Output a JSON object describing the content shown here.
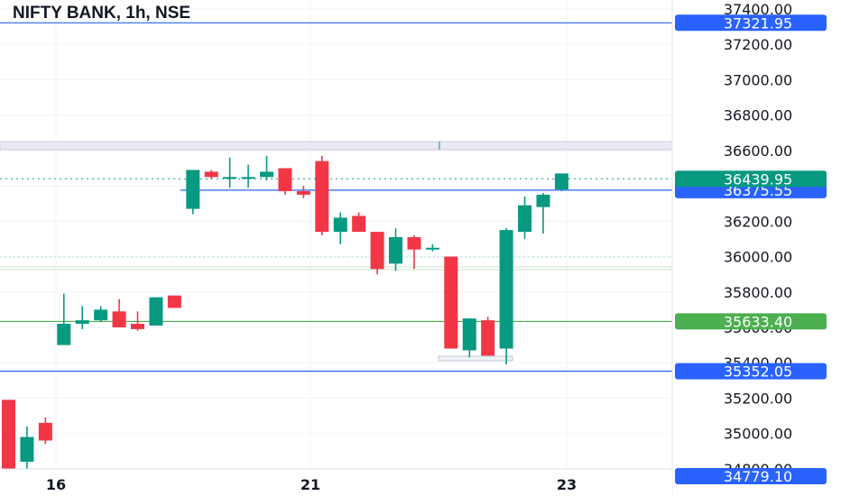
{
  "chart_data": {
    "type": "candlestick",
    "title": "NIFTY BANK, 1h, NSE",
    "x_tick_labels": [
      "16",
      "21",
      "23"
    ],
    "y_tick_labels": [
      "37400.00",
      "37200.00",
      "37000.00",
      "36800.00",
      "36600.00",
      "36400.00",
      "36200.00",
      "36000.00",
      "35800.00",
      "35600.00",
      "35400.00",
      "35200.00",
      "35000.00",
      "34800.00"
    ],
    "y_range": [
      34730,
      37460
    ],
    "grid": true,
    "colors": {
      "up": "#089981",
      "down": "#f23645",
      "blue_line": "#2962ff",
      "green_line": "#4caf50"
    },
    "candles": [
      {
        "o": 35190,
        "h": 35190,
        "l": 34760,
        "c": 34760
      },
      {
        "o": 34840,
        "h": 35040,
        "l": 34800,
        "c": 34980
      },
      {
        "o": 35060,
        "h": 35090,
        "l": 34940,
        "c": 34960
      },
      {
        "o": 35500,
        "h": 35790,
        "l": 35500,
        "c": 35620
      },
      {
        "o": 35620,
        "h": 35720,
        "l": 35590,
        "c": 35640
      },
      {
        "o": 35640,
        "h": 35720,
        "l": 35630,
        "c": 35700
      },
      {
        "o": 35690,
        "h": 35760,
        "l": 35600,
        "c": 35600
      },
      {
        "o": 35620,
        "h": 35690,
        "l": 35580,
        "c": 35590
      },
      {
        "o": 35610,
        "h": 35770,
        "l": 35610,
        "c": 35770
      },
      {
        "o": 35780,
        "h": 35780,
        "l": 35710,
        "c": 35710
      },
      {
        "o": 36270,
        "h": 36490,
        "l": 36240,
        "c": 36490
      },
      {
        "o": 36480,
        "h": 36490,
        "l": 36440,
        "c": 36450
      },
      {
        "o": 36440,
        "h": 36560,
        "l": 36390,
        "c": 36450
      },
      {
        "o": 36450,
        "h": 36520,
        "l": 36390,
        "c": 36450
      },
      {
        "o": 36450,
        "h": 36570,
        "l": 36430,
        "c": 36480
      },
      {
        "o": 36500,
        "h": 36500,
        "l": 36350,
        "c": 36370
      },
      {
        "o": 36370,
        "h": 36400,
        "l": 36330,
        "c": 36350
      },
      {
        "o": 36540,
        "h": 36570,
        "l": 36120,
        "c": 36140
      },
      {
        "o": 36140,
        "h": 36250,
        "l": 36070,
        "c": 36220
      },
      {
        "o": 36230,
        "h": 36250,
        "l": 36140,
        "c": 36140
      },
      {
        "o": 36140,
        "h": 36140,
        "l": 35900,
        "c": 35930
      },
      {
        "o": 35960,
        "h": 36160,
        "l": 35920,
        "c": 36110
      },
      {
        "o": 36110,
        "h": 36120,
        "l": 35930,
        "c": 36040
      },
      {
        "o": 36050,
        "h": 36070,
        "l": 36030,
        "c": 36050
      },
      {
        "o": 36000,
        "h": 36000,
        "l": 35480,
        "c": 35480
      },
      {
        "o": 35470,
        "h": 35650,
        "l": 35430,
        "c": 35650
      },
      {
        "o": 35640,
        "h": 35660,
        "l": 35440,
        "c": 35440
      },
      {
        "o": 35480,
        "h": 36160,
        "l": 35390,
        "c": 36150
      },
      {
        "o": 36140,
        "h": 36340,
        "l": 36100,
        "c": 36290
      },
      {
        "o": 36280,
        "h": 36360,
        "l": 36130,
        "c": 36350
      },
      {
        "o": 36380,
        "h": 36470,
        "l": 36370,
        "c": 36470
      }
    ],
    "horizontal_lines": [
      {
        "value": 37321.95,
        "label": "37321.95",
        "color": "#2962ff"
      },
      {
        "value": 36375.55,
        "label": "36375.55",
        "color": "#2962ff"
      },
      {
        "value": 35633.4,
        "label": "35633.40",
        "color": "#4caf50"
      },
      {
        "value": 35352.05,
        "label": "35352.05",
        "color": "#2962ff"
      }
    ],
    "last_price": {
      "value": 36439.95,
      "label": "36439.95",
      "color": "#089981"
    },
    "bottom_partial_label": "34779.10"
  }
}
